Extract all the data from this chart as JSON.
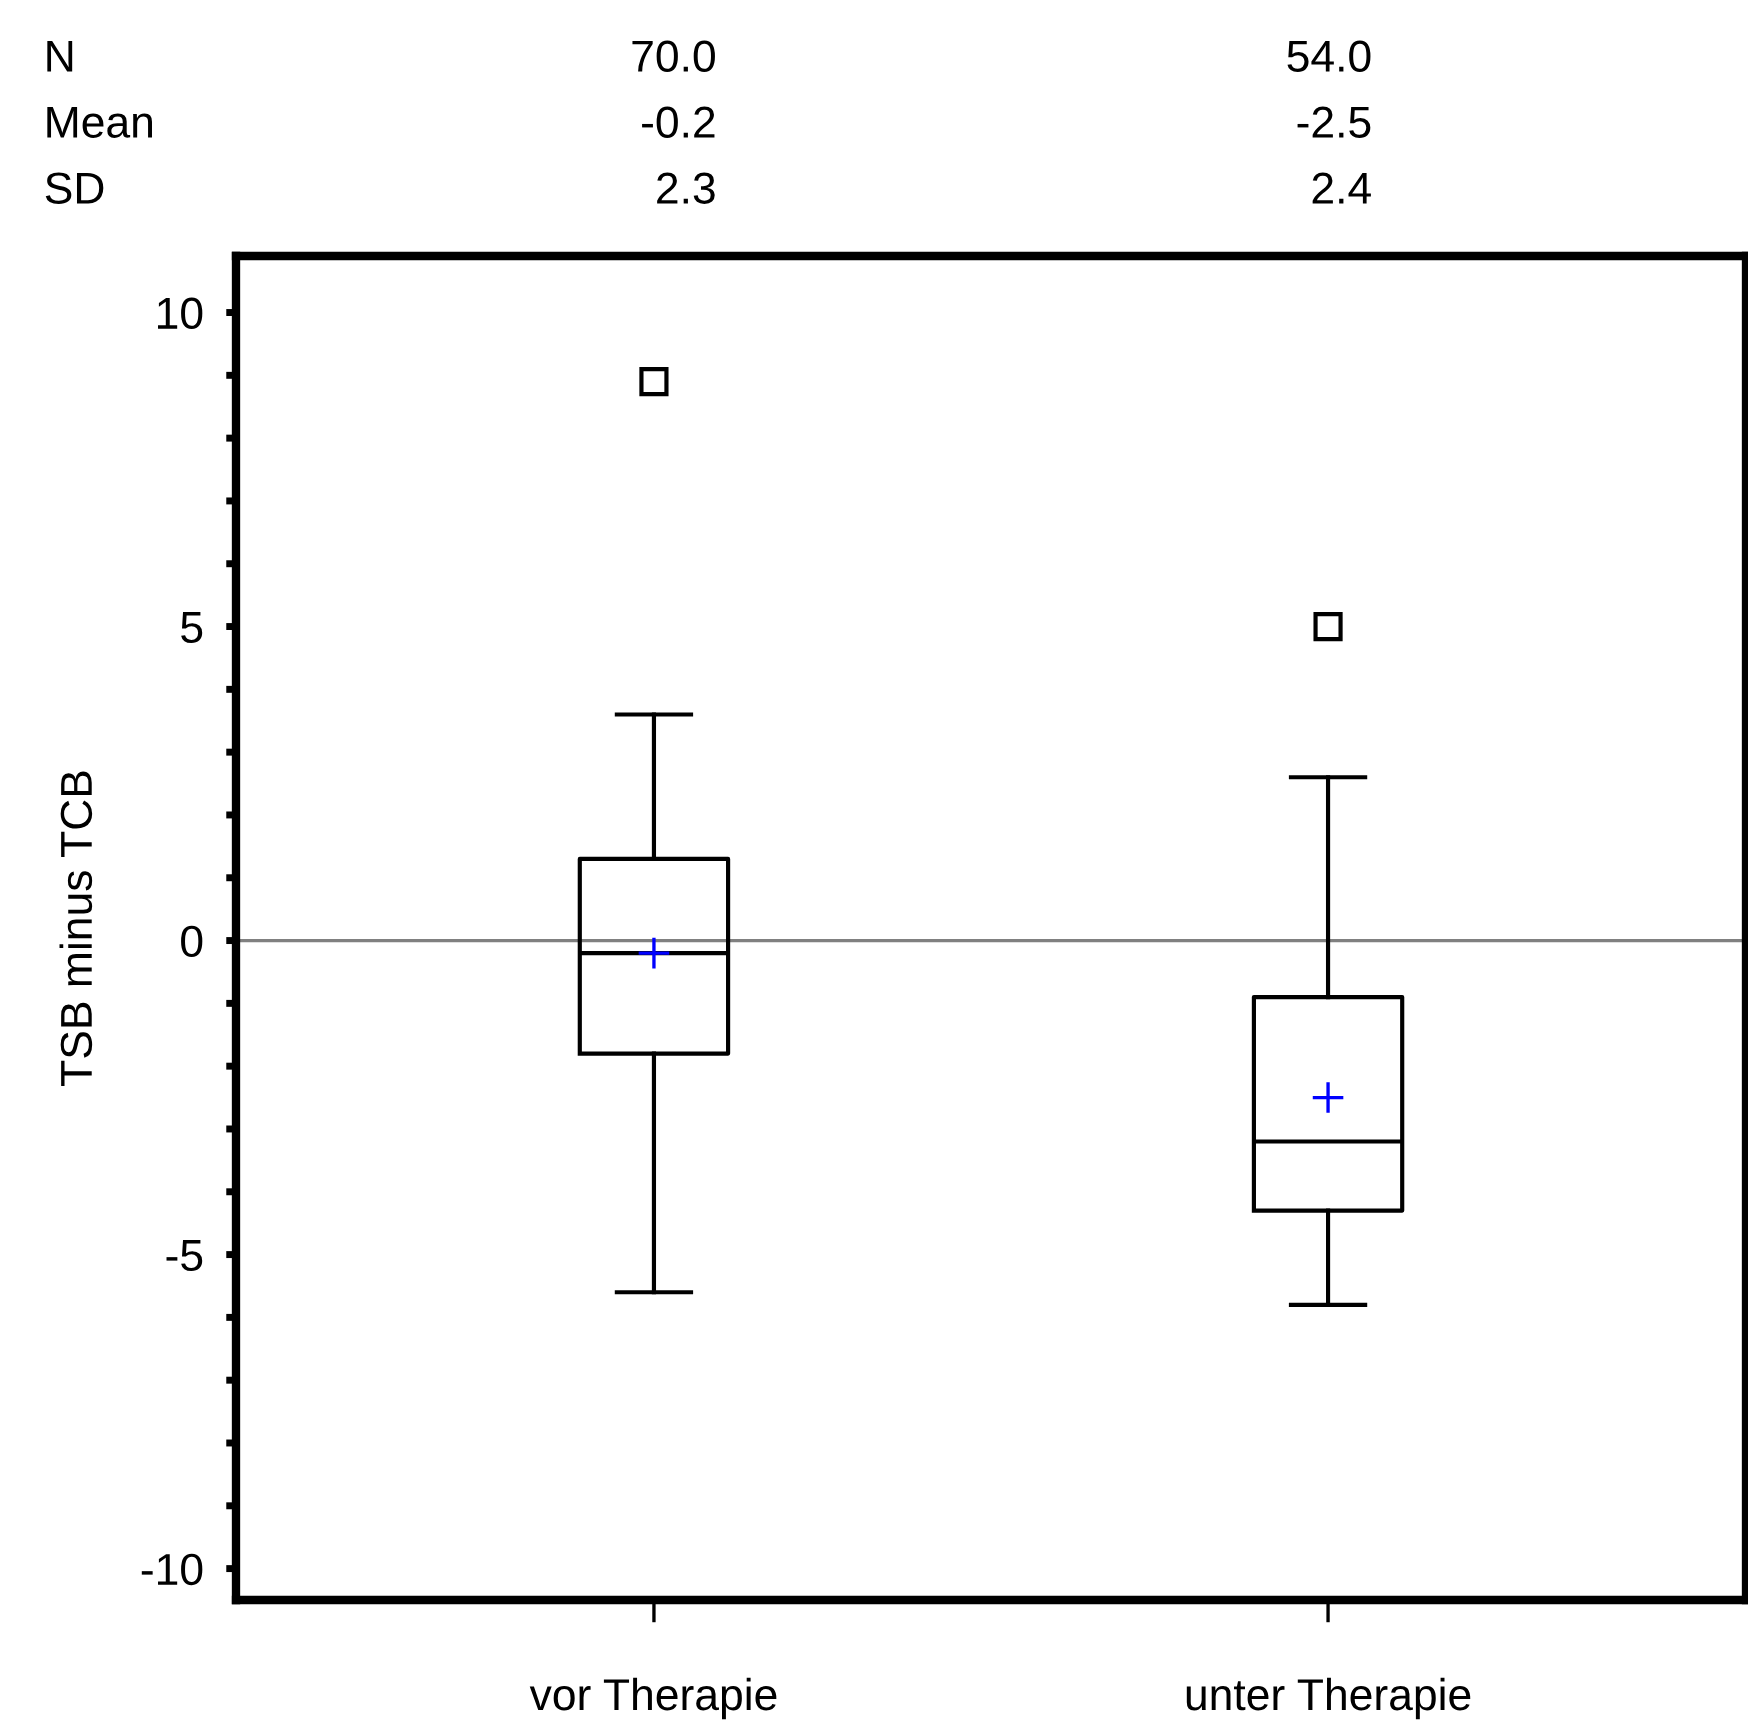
{
  "chart_data": {
    "type": "box",
    "ylabel": "TSB minus TCB",
    "categories": [
      "vor Therapie",
      "unter Therapie"
    ],
    "boxes": [
      {
        "low": -5.6,
        "q1": -1.8,
        "median": -0.2,
        "q3": 1.3,
        "high": 3.6,
        "mean": -0.2,
        "outliers": [
          8.9
        ]
      },
      {
        "low": -5.8,
        "q1": -4.3,
        "median": -3.2,
        "q3": -0.9,
        "high": 2.6,
        "mean": -2.5,
        "outliers": [
          5.0
        ]
      }
    ],
    "ylim": [
      -10.5,
      10.9
    ],
    "yticks": [
      {
        "value": -10,
        "label": "-10"
      },
      {
        "value": -9,
        "label": null
      },
      {
        "value": -8,
        "label": null
      },
      {
        "value": -7,
        "label": null
      },
      {
        "value": -6,
        "label": null
      },
      {
        "value": -5,
        "label": "-5"
      },
      {
        "value": -4,
        "label": null
      },
      {
        "value": -3,
        "label": null
      },
      {
        "value": -2,
        "label": null
      },
      {
        "value": -1,
        "label": null
      },
      0,
      {
        "value": 1,
        "label": null
      },
      {
        "value": 2,
        "label": null
      },
      {
        "value": 3,
        "label": null
      },
      {
        "value": 4,
        "label": null
      },
      5,
      {
        "value": 6,
        "label": null
      },
      {
        "value": 7,
        "label": null
      },
      {
        "value": 8,
        "label": null
      },
      {
        "value": 9,
        "label": null
      },
      10
    ],
    "ref_lines": [
      {
        "axis": "y",
        "value": 0,
        "color": "#808080"
      }
    ],
    "color": "#000000",
    "annotations": [
      "N",
      "70.0",
      "54.0",
      "Mean",
      "-0.2",
      "-2.5",
      "SD",
      "2.3",
      "2.4"
    ],
    "grid": false,
    "legend": false
  }
}
